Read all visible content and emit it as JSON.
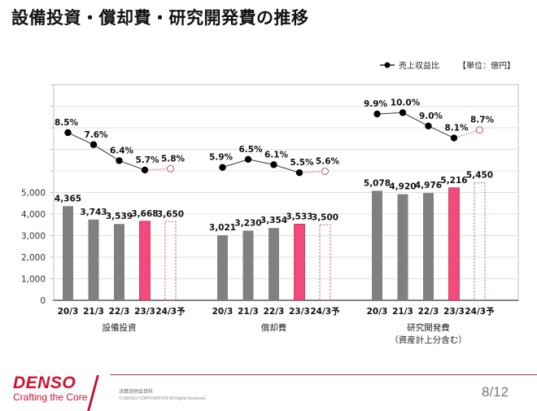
{
  "page": {
    "title": "設備投資・償却費・研究開発費の推移",
    "page_number": "8/12",
    "footer": {
      "logo": "DENSO",
      "tagline": "Crafting the Core",
      "doc_title": "決算説明会資料",
      "copyright": "© DENSO CORPORATION All Rights Reserved."
    }
  },
  "chart_data": {
    "type": "bar",
    "title": "設備投資・償却費・研究開発費の推移",
    "unit_label": "【単位：億円】",
    "legend": [
      {
        "name": "売上収益比",
        "marker": "line-dot",
        "placement": "top-right"
      }
    ],
    "ylim": [
      0,
      10000
    ],
    "yticks": [
      0,
      1000,
      2000,
      3000,
      4000,
      5000
    ],
    "ytick_labels": [
      "0",
      "1,000",
      "2,000",
      "3,000",
      "4,000",
      "5,000"
    ],
    "grid": true,
    "categories": [
      "20/3",
      "21/3",
      "22/3",
      "23/3",
      "24/3予"
    ],
    "colors": {
      "past": "#808080",
      "current": "#f24a7c",
      "forecast_border": "#c0506a",
      "line": "#000000"
    },
    "groups": [
      {
        "name": "設備投資",
        "values": [
          4365,
          3743,
          3539,
          3668,
          3650
        ],
        "value_labels": [
          "4,365",
          "3,743",
          "3,539",
          "3,668",
          "3,650"
        ],
        "ratio": [
          8.5,
          7.6,
          6.4,
          5.7,
          5.8
        ],
        "ratio_labels": [
          "8.5%",
          "7.6%",
          "6.4%",
          "5.7%",
          "5.8%"
        ]
      },
      {
        "name": "償却費",
        "values": [
          3021,
          3230,
          3354,
          3533,
          3500
        ],
        "value_labels": [
          "3,021",
          "3,230",
          "3,354",
          "3,533",
          "3,500"
        ],
        "ratio": [
          5.9,
          6.5,
          6.1,
          5.5,
          5.6
        ],
        "ratio_labels": [
          "5.9%",
          "6.5%",
          "6.1%",
          "5.5%",
          "5.6%"
        ]
      },
      {
        "name": "研究開発費",
        "subname": "（資産計上分含む）",
        "values": [
          5078,
          4920,
          4976,
          5216,
          5450
        ],
        "value_labels": [
          "5,078",
          "4,920",
          "4,976",
          "5,216",
          "5,450"
        ],
        "ratio": [
          9.9,
          10.0,
          9.0,
          8.1,
          8.7
        ],
        "ratio_labels": [
          "9.9%",
          "10.0%",
          "9.0%",
          "8.1%",
          "8.7%"
        ]
      }
    ]
  }
}
